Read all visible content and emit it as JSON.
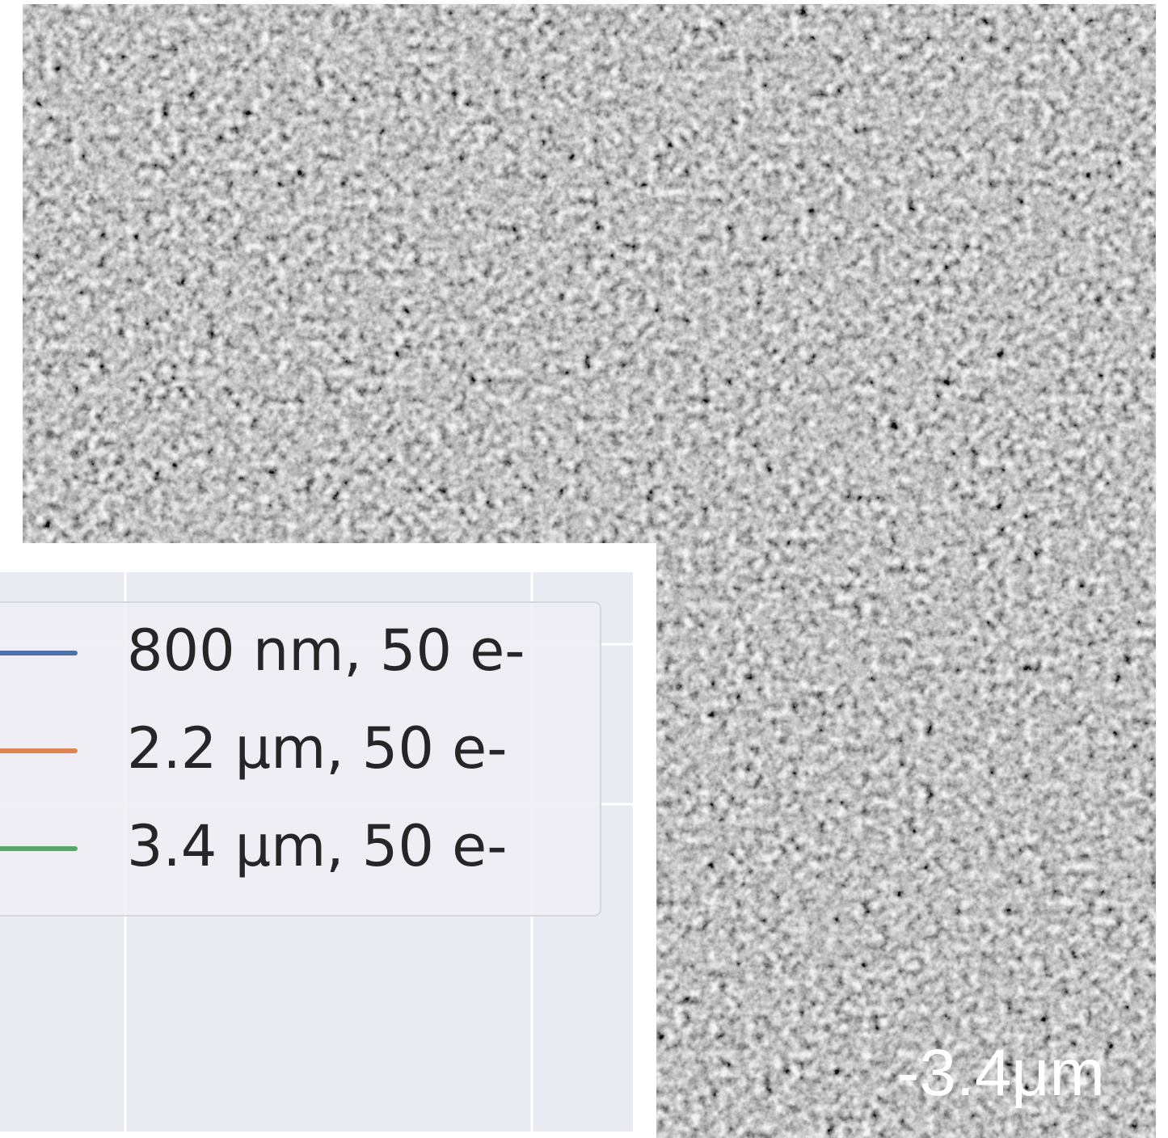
{
  "legend": {
    "entries": [
      {
        "label": "800 nm, 50 e-",
        "color": "#4c72b0"
      },
      {
        "label": "2.2 μm, 50 e-",
        "color": "#dd8452"
      },
      {
        "label": "3.4 μm, 50 e-",
        "color": "#55a868"
      }
    ]
  },
  "image_label": "-3.4μm"
}
